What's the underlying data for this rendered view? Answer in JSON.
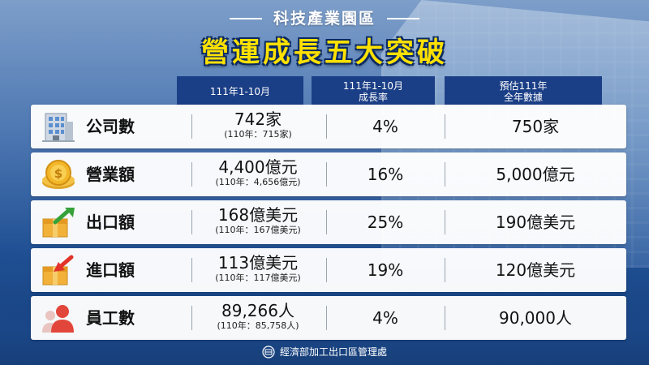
{
  "title": {
    "subtitle": "科技產業園區",
    "main": "營運成長五大突破"
  },
  "headers": {
    "col1": "111年1-10月",
    "col2_line1": "111年1-10月",
    "col2_line2": "成長率",
    "col3_line1": "預估111年",
    "col3_line2": "全年數據"
  },
  "rows": [
    {
      "icon": "building-icon",
      "label": "公司數",
      "value": "742家",
      "prev": "(110年：715家)",
      "growth": "4%",
      "forecast": "750家"
    },
    {
      "icon": "coin-icon",
      "label": "營業額",
      "value": "4,400億元",
      "prev": "(110年：4,656億元)",
      "growth": "16%",
      "forecast": "5,000億元"
    },
    {
      "icon": "export-box-icon",
      "label": "出口額",
      "value": "168億美元",
      "prev": "(110年：167億美元)",
      "growth": "25%",
      "forecast": "190億美元"
    },
    {
      "icon": "import-box-icon",
      "label": "進口額",
      "value": "113億美元",
      "prev": "(110年：117億美元)",
      "growth": "19%",
      "forecast": "120億美元"
    },
    {
      "icon": "people-icon",
      "label": "員工數",
      "value": "89,266人",
      "prev": "(110年：85,758人)",
      "growth": "4%",
      "forecast": "90,000人"
    }
  ],
  "footer": {
    "org": "經濟部加工出口區管理處",
    "logo_icon": "ministry-logo-icon"
  },
  "colors": {
    "title_yellow": "#ffe100",
    "header_bg": "#1b3f86",
    "background": "#1f4f93"
  }
}
